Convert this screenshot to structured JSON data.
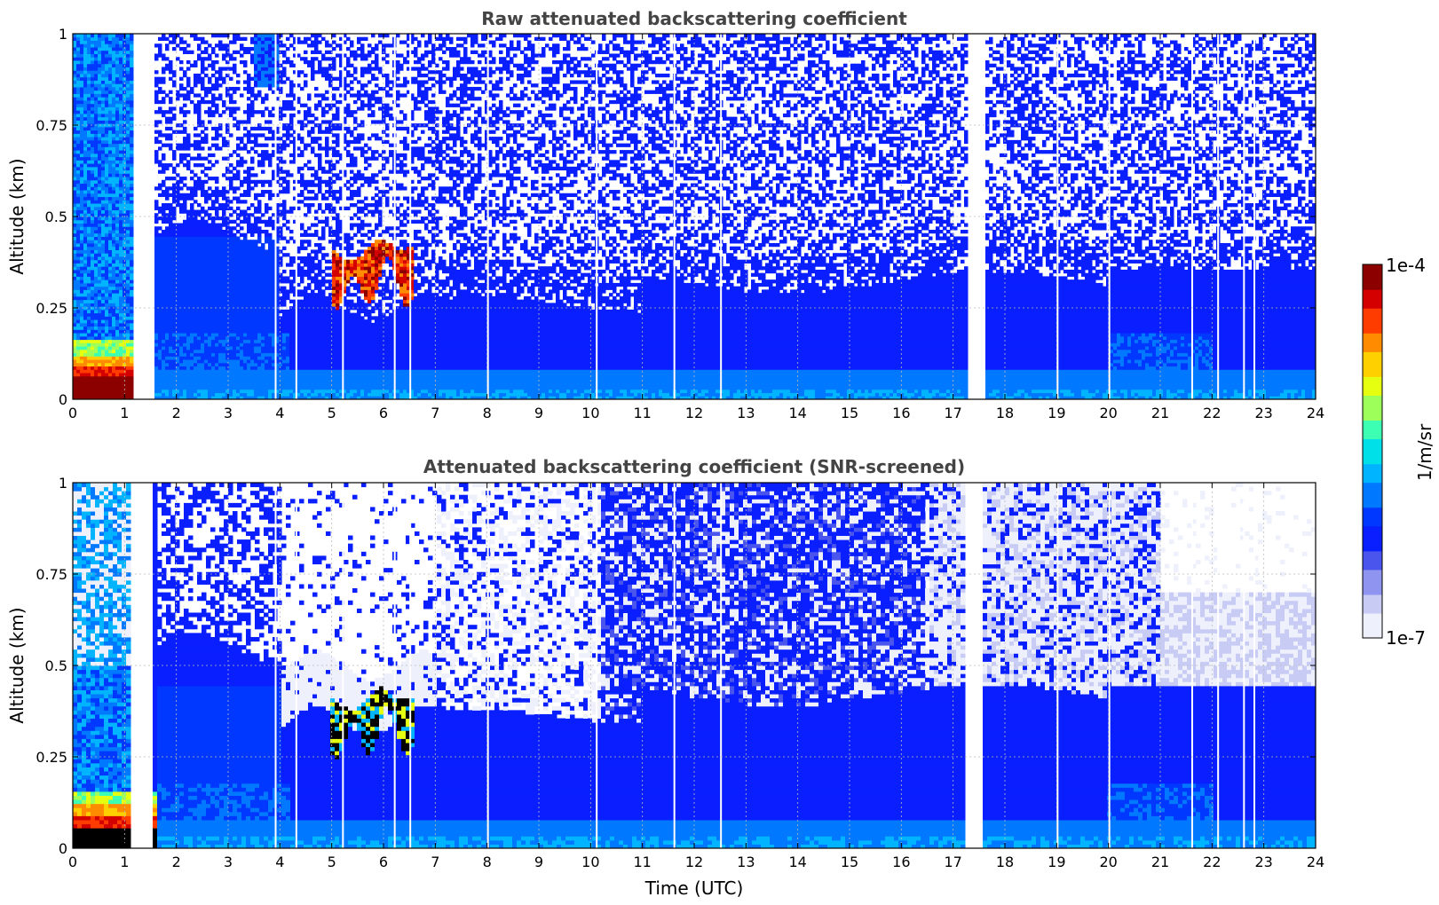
{
  "chart_data": [
    {
      "type": "heatmap",
      "title": "Raw attenuated backscattering coefficient",
      "xlabel": "",
      "ylabel": "Altitude (km)",
      "xlim": [
        0,
        24
      ],
      "ylim": [
        0,
        1
      ],
      "x_ticks": [
        "0",
        "1",
        "2",
        "3",
        "4",
        "5",
        "6",
        "7",
        "8",
        "9",
        "10",
        "11",
        "12",
        "13",
        "14",
        "15",
        "16",
        "17",
        "18",
        "19",
        "20",
        "21",
        "22",
        "23",
        "24"
      ],
      "y_ticks": [
        "0",
        "0.25",
        "0.5",
        "0.75",
        "1"
      ],
      "grid": true,
      "screened": false,
      "colormap": "jet",
      "log_scale": true,
      "features": [
        {
          "name": "low dense layer",
          "t": [
            0,
            1.6
          ],
          "alt": [
            0,
            0.16
          ],
          "value": "1e-4"
        },
        {
          "name": "elevated layer",
          "t": [
            5.0,
            6.6
          ],
          "alt": [
            0.22,
            0.45
          ],
          "value": "5e-5"
        },
        {
          "name": "aerosol boundary layer top",
          "alt_top_km": [
            0.5,
            0.45,
            0.3,
            0.35,
            0.4
          ]
        },
        {
          "name": "data gaps (UTC)",
          "t": [
            1.15,
            1.55,
            17.25,
            17.6
          ]
        }
      ]
    },
    {
      "type": "heatmap",
      "title": "Attenuated backscattering coefficient (SNR-screened)",
      "xlabel": "Time (UTC)",
      "ylabel": "Altitude (km)",
      "xlim": [
        0,
        24
      ],
      "ylim": [
        0,
        1
      ],
      "x_ticks": [
        "0",
        "1",
        "2",
        "3",
        "4",
        "5",
        "6",
        "7",
        "8",
        "9",
        "10",
        "11",
        "12",
        "13",
        "14",
        "15",
        "16",
        "17",
        "18",
        "19",
        "20",
        "21",
        "22",
        "23",
        "24"
      ],
      "y_ticks": [
        "0",
        "0.25",
        "0.5",
        "0.75",
        "1"
      ],
      "grid": true,
      "screened": true,
      "colormap": "jet",
      "log_scale": true
    }
  ],
  "colorbar": {
    "max_label": "1e-4",
    "min_label": "1e-7",
    "unit_label": "1/m/sr",
    "colors": [
      "#eef0fb",
      "#c8ccf5",
      "#8e94ef",
      "#4a55ee",
      "#0a1fff",
      "#0038ff",
      "#0078ff",
      "#00b4ff",
      "#00e0e8",
      "#3cffb4",
      "#9cff5a",
      "#e6ff10",
      "#ffd000",
      "#ff8c00",
      "#ff3c00",
      "#d40000",
      "#8c0000"
    ]
  }
}
